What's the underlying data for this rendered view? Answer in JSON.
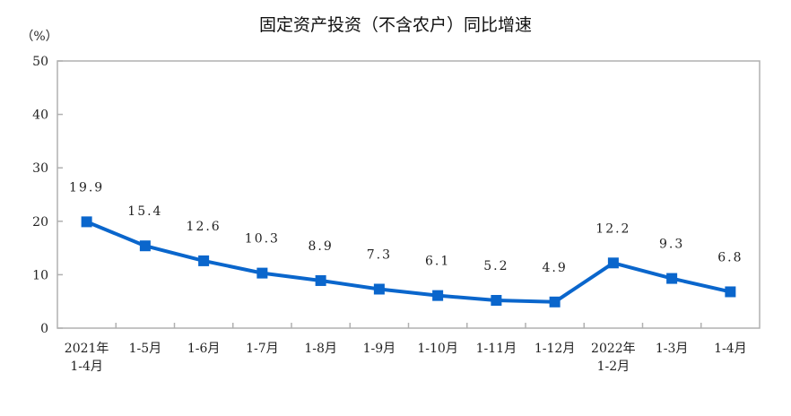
{
  "chart_data": {
    "type": "line",
    "title": "固定资产投资（不含农户）同比增速",
    "ylabel": "（%）",
    "xlabel": "",
    "categories": [
      [
        "2021年",
        "1-4月"
      ],
      [
        "1-5月"
      ],
      [
        "1-6月"
      ],
      [
        "1-7月"
      ],
      [
        "1-8月"
      ],
      [
        "1-9月"
      ],
      [
        "1-10月"
      ],
      [
        "1-11月"
      ],
      [
        "1-12月"
      ],
      [
        "2022年",
        "1-2月"
      ],
      [
        "1-3月"
      ],
      [
        "1-4月"
      ]
    ],
    "values": [
      19.9,
      15.4,
      12.6,
      10.3,
      8.9,
      7.3,
      6.1,
      5.2,
      4.9,
      12.2,
      9.3,
      6.8
    ],
    "data_labels": [
      "19.9",
      "15.4",
      "12.6",
      "10.3",
      "8.9",
      "7.3",
      "6.1",
      "5.2",
      "4.9",
      "12.2",
      "9.3",
      "6.8"
    ],
    "ylim": [
      0,
      50
    ],
    "yticks": [
      "0",
      "10",
      "20",
      "30",
      "40",
      "50"
    ],
    "grid": false,
    "legend": "none",
    "line_color": "#0a66cc",
    "axis_color": "#b0b0b0"
  }
}
